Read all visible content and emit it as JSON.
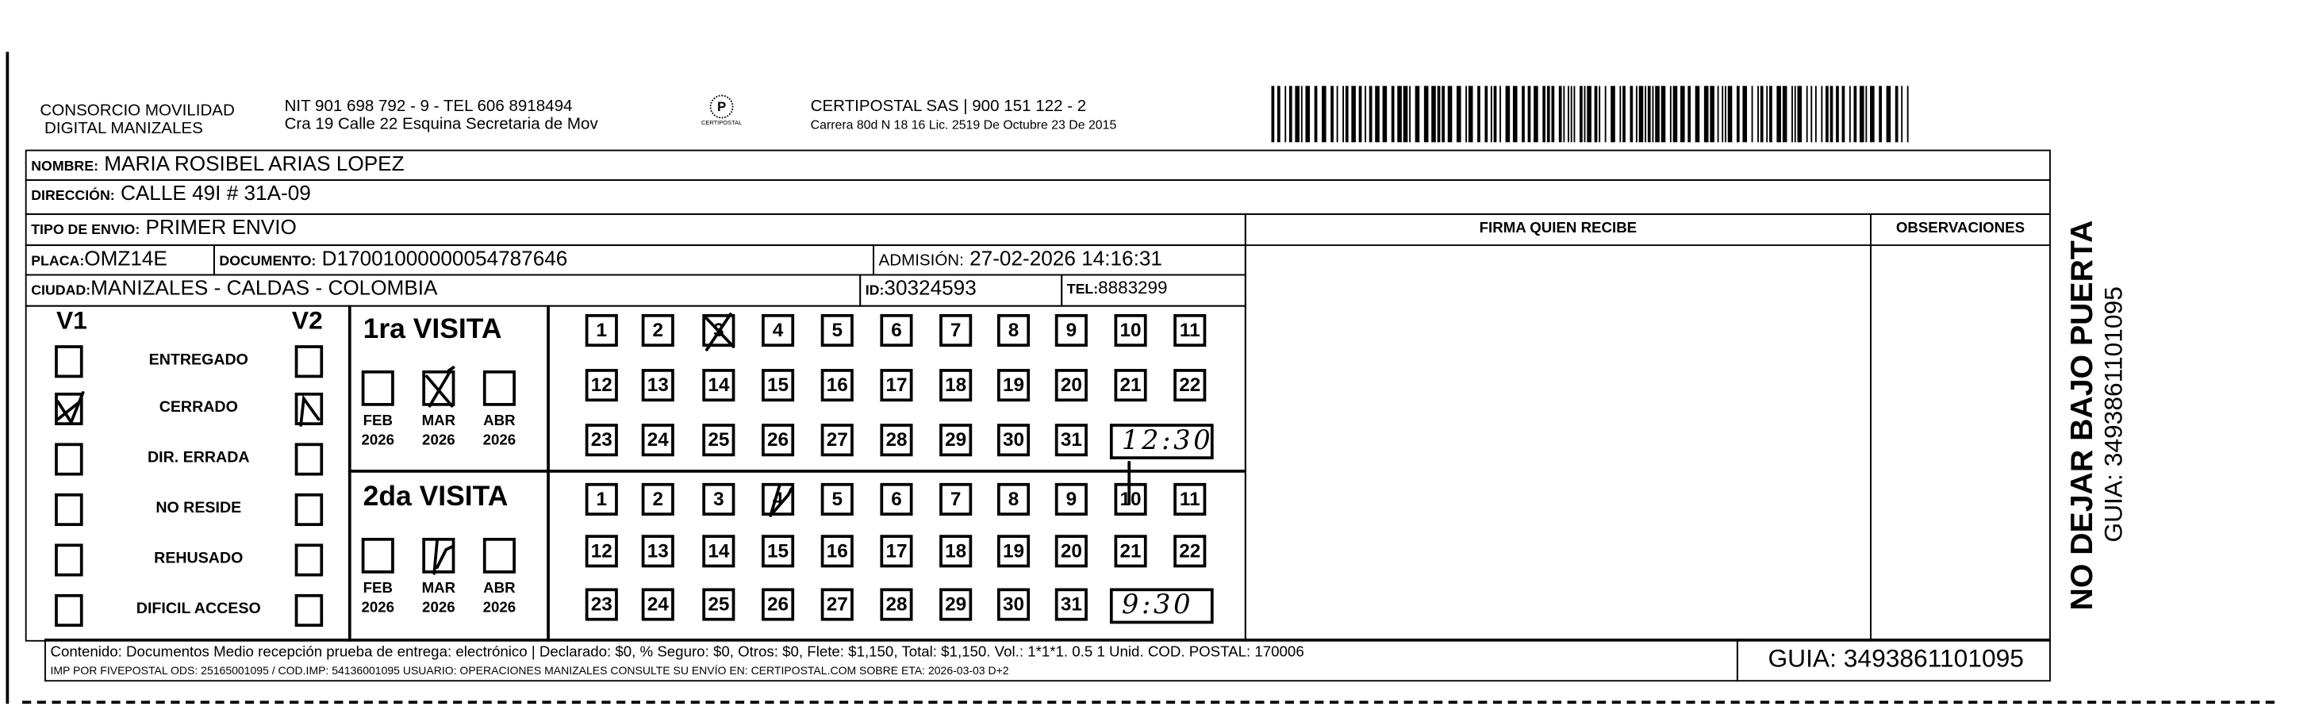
{
  "header": {
    "company_line1": "CONSORCIO MOVILIDAD",
    "company_line2": "DIGITAL MANIZALES",
    "nit": "NIT 901 698 792 - 9 - TEL 606 8918494",
    "address": "Cra 19 Calle 22 Esquina Secretaria de Mov",
    "logo_text": "CERTIPOSTAL",
    "carrier": "CERTIPOSTAL SAS | 900 151 122 - 2",
    "carrier_address": "Carrera 80d N 18 16  Lic. 2519 De Octubre 23 De 2015"
  },
  "fields": {
    "nombre_label": "NOMBRE:",
    "nombre": "MARIA ROSIBEL ARIAS LOPEZ",
    "direccion_label": "DIRECCIÓN:",
    "direccion": "CALLE 49I # 31A-09",
    "tipo_label": "TIPO DE ENVIO:",
    "tipo": "PRIMER ENVIO",
    "placa_label": "PLACA:",
    "placa": "OMZ14E",
    "documento_label": "DOCUMENTO:",
    "documento": "D17001000000054787646",
    "admision_label": "ADMISIÓN:",
    "admision": "27-02-2026 14:16:31",
    "ciudad_label": "CIUDAD:",
    "ciudad": "MANIZALES - CALDAS - COLOMBIA",
    "id_label": "ID:",
    "id": "30324593",
    "tel_label": "TEL:",
    "tel": "8883299",
    "firma_label": "FIRMA QUIEN RECIBE",
    "observaciones_label": "OBSERVACIONES"
  },
  "status_grid": {
    "v1_label": "V1",
    "v2_label": "V2",
    "statuses": [
      "ENTREGADO",
      "CERRADO",
      "DIR. ERRADA",
      "NO RESIDE",
      "REHUSADO",
      "DIFICIL ACCESO"
    ],
    "v1_checked": "CERRADO",
    "v2_checked": "CERRADO"
  },
  "visits": [
    {
      "title": "1ra VISITA",
      "months": [
        {
          "m": "FEB",
          "y": "2026"
        },
        {
          "m": "MAR",
          "y": "2026"
        },
        {
          "m": "ABR",
          "y": "2026"
        }
      ],
      "checked_month": "MAR",
      "checked_day": 3,
      "handwritten_time": "12:30"
    },
    {
      "title": "2da VISITA",
      "months": [
        {
          "m": "FEB",
          "y": "2026"
        },
        {
          "m": "MAR",
          "y": "2026"
        },
        {
          "m": "ABR",
          "y": "2026"
        }
      ],
      "checked_month": "MAR",
      "checked_day": 4,
      "handwritten_time": "9:30"
    }
  ],
  "days": [
    "1",
    "2",
    "3",
    "4",
    "5",
    "6",
    "7",
    "8",
    "9",
    "10",
    "11",
    "12",
    "13",
    "14",
    "15",
    "16",
    "17",
    "18",
    "19",
    "20",
    "21",
    "22",
    "23",
    "24",
    "25",
    "26",
    "27",
    "28",
    "29",
    "30",
    "31"
  ],
  "footer": {
    "contenido": "Contenido: Documentos Medio recepción prueba de entrega: electrónico | Declarado: $0, % Seguro: $0, Otros: $0, Flete: $1,150, Total: $1,150. Vol.: 1*1*1. 0.5  1 Unid. COD. POSTAL: 170006",
    "imp": "IMP POR FIVEPOSTAL ODS: 25165001095 / COD.IMP: 54136001095 USUARIO: OPERACIONES MANIZALES CONSULTE SU ENVÍO EN: CERTIPOSTAL.COM SOBRE ETA: 2026-03-03 D+2",
    "guia": "GUIA: 3493861101095"
  },
  "side": {
    "warning": "NO DEJAR BAJO PUERTA",
    "guia": "GUIA: 3493861101095"
  }
}
